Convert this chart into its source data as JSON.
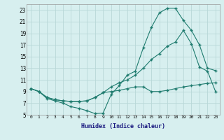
{
  "xlabel": "Humidex (Indice chaleur)",
  "bg_color": "#d7efef",
  "grid_color": "#b8d8d8",
  "line_color": "#1e7b6e",
  "xlim": [
    -0.5,
    23.5
  ],
  "ylim": [
    5,
    24
  ],
  "xticks": [
    0,
    1,
    2,
    3,
    4,
    5,
    6,
    7,
    8,
    9,
    10,
    11,
    12,
    13,
    14,
    15,
    16,
    17,
    18,
    19,
    20,
    21,
    22,
    23
  ],
  "yticks": [
    5,
    7,
    9,
    11,
    13,
    15,
    17,
    19,
    21,
    23
  ],
  "line1_x": [
    0,
    1,
    2,
    3,
    4,
    5,
    6,
    7,
    8,
    9,
    10,
    11,
    12,
    13,
    14,
    15,
    16,
    17,
    18,
    19,
    20,
    21,
    22,
    23
  ],
  "line1_y": [
    9.5,
    9.0,
    7.8,
    7.4,
    7.0,
    6.4,
    6.1,
    5.7,
    5.2,
    5.3,
    8.5,
    10.0,
    11.8,
    12.5,
    16.5,
    20.0,
    22.5,
    23.3,
    23.3,
    21.2,
    19.5,
    17.0,
    13.0,
    12.6
  ],
  "line2_x": [
    0,
    1,
    2,
    3,
    4,
    5,
    6,
    7,
    8,
    9,
    10,
    11,
    12,
    13,
    14,
    15,
    16,
    17,
    18,
    19,
    20,
    21,
    22,
    23
  ],
  "line2_y": [
    9.5,
    9.0,
    8.0,
    7.6,
    7.4,
    7.3,
    7.3,
    7.4,
    8.0,
    8.8,
    9.8,
    10.5,
    11.0,
    11.8,
    13.0,
    14.5,
    15.5,
    16.8,
    17.5,
    19.5,
    17.2,
    13.2,
    12.5,
    9.0
  ],
  "line3_x": [
    0,
    1,
    2,
    3,
    4,
    5,
    6,
    7,
    8,
    9,
    10,
    11,
    12,
    13,
    14,
    15,
    16,
    17,
    18,
    19,
    20,
    21,
    22,
    23
  ],
  "line3_y": [
    9.5,
    9.0,
    8.0,
    7.6,
    7.4,
    7.3,
    7.3,
    7.4,
    8.0,
    8.8,
    9.0,
    9.2,
    9.5,
    9.8,
    9.8,
    9.0,
    9.0,
    9.2,
    9.5,
    9.8,
    10.0,
    10.2,
    10.4,
    10.5
  ]
}
